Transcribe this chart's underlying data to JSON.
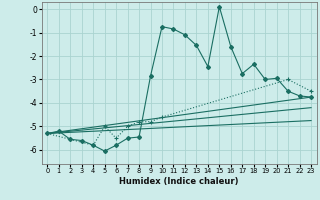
{
  "xlabel": "Humidex (Indice chaleur)",
  "background_color": "#cdecea",
  "grid_color": "#aad4d0",
  "line_color": "#1a6e62",
  "xlim": [
    -0.5,
    23.5
  ],
  "ylim": [
    -6.6,
    0.3
  ],
  "yticks": [
    0,
    -1,
    -2,
    -3,
    -4,
    -5,
    -6
  ],
  "xticks": [
    0,
    1,
    2,
    3,
    4,
    5,
    6,
    7,
    8,
    9,
    10,
    11,
    12,
    13,
    14,
    15,
    16,
    17,
    18,
    19,
    20,
    21,
    22,
    23
  ],
  "series1_x": [
    0,
    1,
    2,
    3,
    4,
    5,
    6,
    7,
    8,
    9,
    10,
    11,
    12,
    13,
    14,
    15,
    16,
    17,
    18,
    19,
    20,
    21,
    22,
    23
  ],
  "series1_y": [
    -5.3,
    -5.2,
    -5.55,
    -5.6,
    -5.8,
    -6.05,
    -5.8,
    -5.5,
    -5.45,
    -2.85,
    -0.75,
    -0.85,
    -1.1,
    -1.55,
    -2.45,
    0.1,
    -1.6,
    -2.75,
    -2.35,
    -3.0,
    -2.95,
    -3.5,
    -3.7,
    -3.75
  ],
  "series2_x": [
    0,
    2,
    4,
    5,
    6,
    7,
    8,
    9,
    10,
    21,
    23
  ],
  "series2_y": [
    -5.3,
    -5.55,
    -5.8,
    -5.0,
    -5.5,
    -5.0,
    -4.8,
    -4.8,
    -4.6,
    -3.0,
    -3.5
  ],
  "line3_x": [
    0,
    23
  ],
  "line3_y": [
    -5.3,
    -3.75
  ],
  "line4_x": [
    0,
    23
  ],
  "line4_y": [
    -5.3,
    -4.2
  ],
  "line5_x": [
    0,
    23
  ],
  "line5_y": [
    -5.3,
    -4.75
  ]
}
